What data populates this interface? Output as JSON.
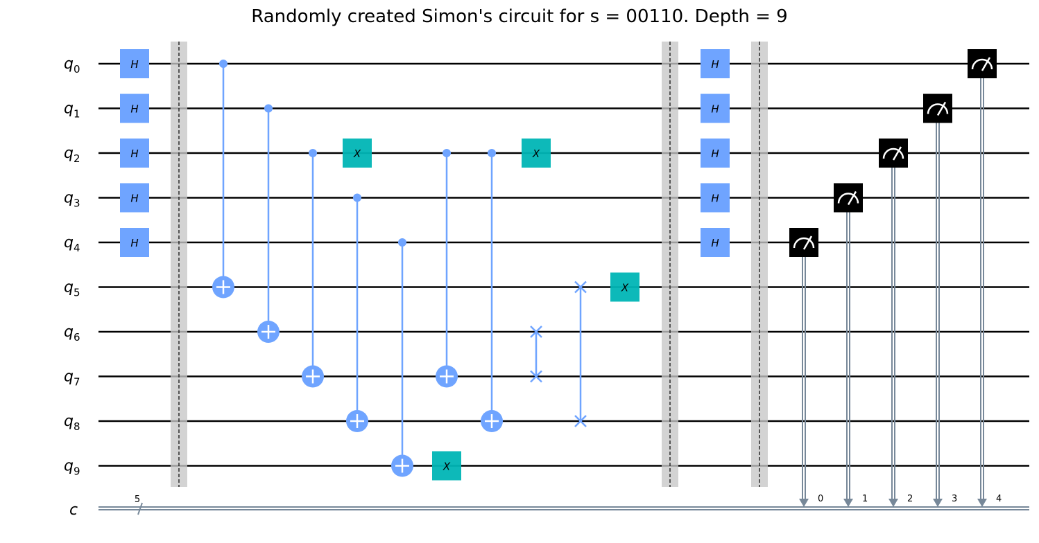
{
  "title": "Randomly created Simon's circuit for s = 00110. Depth = 9",
  "qubits": [
    {
      "name": "q",
      "index": "0"
    },
    {
      "name": "q",
      "index": "1"
    },
    {
      "name": "q",
      "index": "2"
    },
    {
      "name": "q",
      "index": "3"
    },
    {
      "name": "q",
      "index": "4"
    },
    {
      "name": "q",
      "index": "5"
    },
    {
      "name": "q",
      "index": "6"
    },
    {
      "name": "q",
      "index": "7"
    },
    {
      "name": "q",
      "index": "8"
    },
    {
      "name": "q",
      "index": "9"
    }
  ],
  "classical_register": {
    "name": "c",
    "size": "5",
    "bit_labels": [
      "0",
      "1",
      "2",
      "3",
      "4"
    ]
  },
  "gate_labels": {
    "h": "H",
    "x": "X"
  },
  "colors": {
    "h_gate": "#6fa4ff",
    "x_gate": "#00b5b5",
    "control": "#6fa4ff",
    "barrier": "#d3d3d3",
    "measure": "#000000",
    "classical_wire": "#778899"
  },
  "operations": [
    {
      "column": 0,
      "gate": "h",
      "qubits": [
        0,
        1,
        2,
        3,
        4
      ]
    },
    {
      "column": 1,
      "gate": "barrier"
    },
    {
      "column": 2,
      "gate": "cx",
      "control": 0,
      "target": 5
    },
    {
      "column": 3,
      "gate": "cx",
      "control": 1,
      "target": 6
    },
    {
      "column": 4,
      "gate": "cx",
      "control": 2,
      "target": 7
    },
    {
      "column": 5,
      "gate": "x",
      "qubits": [
        2
      ]
    },
    {
      "column": 5,
      "gate": "cx",
      "control": 3,
      "target": 8
    },
    {
      "column": 6,
      "gate": "cx",
      "control": 4,
      "target": 9
    },
    {
      "column": 7,
      "gate": "x",
      "qubits": [
        9
      ]
    },
    {
      "column": 7,
      "gate": "cx",
      "control": 2,
      "target": 7
    },
    {
      "column": 8,
      "gate": "cx",
      "control": 2,
      "target": 8
    },
    {
      "column": 9,
      "gate": "x",
      "qubits": [
        2
      ]
    },
    {
      "column": 9,
      "gate": "swap",
      "qubits": [
        6,
        7
      ]
    },
    {
      "column": 10,
      "gate": "swap",
      "qubits": [
        5,
        8
      ]
    },
    {
      "column": 11,
      "gate": "x",
      "qubits": [
        5
      ]
    },
    {
      "column": 12,
      "gate": "barrier"
    },
    {
      "column": 13,
      "gate": "h",
      "qubits": [
        0,
        1,
        2,
        3,
        4
      ]
    },
    {
      "column": 14,
      "gate": "barrier"
    },
    {
      "column": 15,
      "gate": "measure",
      "qubit": 4,
      "clbit": 0
    },
    {
      "column": 16,
      "gate": "measure",
      "qubit": 3,
      "clbit": 1
    },
    {
      "column": 17,
      "gate": "measure",
      "qubit": 2,
      "clbit": 2
    },
    {
      "column": 18,
      "gate": "measure",
      "qubit": 1,
      "clbit": 3
    },
    {
      "column": 19,
      "gate": "measure",
      "qubit": 0,
      "clbit": 4
    }
  ]
}
